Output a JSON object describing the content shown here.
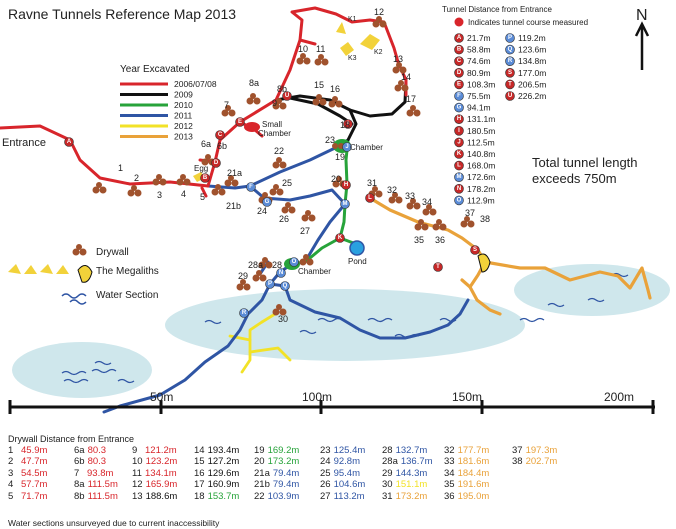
{
  "title": "Ravne Tunnels Reference Map 2013",
  "compass": "N",
  "total_length": {
    "line1": "Total tunnel length",
    "line2": "exceeds 750m"
  },
  "colors": {
    "2006_2008": "#d8252b",
    "2009": "#111111",
    "2010": "#27a33a",
    "2011": "#2f55a4",
    "2012": "#f2e227",
    "2013": "#e9a23a",
    "water": "#cfe7ec",
    "drywall": "#a0522d",
    "megalith": "#f2d23a"
  },
  "year_legend": {
    "title": "Year Excavated",
    "items": [
      {
        "label": "2006/07/08",
        "color": "#d8252b"
      },
      {
        "label": "2009",
        "color": "#111111"
      },
      {
        "label": "2010",
        "color": "#27a33a"
      },
      {
        "label": "2011",
        "color": "#2f55a4"
      },
      {
        "label": "2012",
        "color": "#f2e227"
      },
      {
        "label": "2013",
        "color": "#e9a23a"
      }
    ]
  },
  "symbol_legend": {
    "drywall": "Drywall",
    "megaliths": "The Megaliths",
    "water": "Water Section"
  },
  "place_labels": {
    "entrance": "Entrance",
    "egg": "Egg",
    "small_chamber_1": "Small",
    "small_chamber_2": "Chamber",
    "chamber_top": "Chamber",
    "chamber_bottom": "Chamber",
    "pond": "Pond",
    "k1": "K1",
    "k2": "K2",
    "k3": "K3"
  },
  "scale_bar": [
    "50m",
    "100m",
    "150m",
    "200m"
  ],
  "tunnel_distances": {
    "title": "Tunnel Distance from Entrance",
    "indicator": "Indicates tunnel course measured",
    "left": [
      {
        "mark": "A",
        "value": "21.7m"
      },
      {
        "mark": "B",
        "value": "58.8m"
      },
      {
        "mark": "C",
        "value": "74.6m"
      },
      {
        "mark": "D",
        "value": "80.9m"
      },
      {
        "mark": "E",
        "value": "108.3m"
      },
      {
        "mark": "F",
        "value": "75.5m"
      },
      {
        "mark": "G",
        "value": "94.1m"
      },
      {
        "mark": "H",
        "value": "131.1m"
      },
      {
        "mark": "I",
        "value": "180.5m"
      },
      {
        "mark": "J",
        "value": "112.5m"
      },
      {
        "mark": "K",
        "value": "140.8m"
      },
      {
        "mark": "L",
        "value": "168.0m"
      },
      {
        "mark": "M",
        "value": "172.6m"
      },
      {
        "mark": "N",
        "value": "178.2m"
      },
      {
        "mark": "O",
        "value": "112.9m"
      }
    ],
    "right": [
      {
        "mark": "P",
        "value": "119.2m"
      },
      {
        "mark": "Q",
        "value": "123.6m"
      },
      {
        "mark": "R",
        "value": "134.8m"
      },
      {
        "mark": "S",
        "value": "177.0m"
      },
      {
        "mark": "T",
        "value": "206.5m"
      },
      {
        "mark": "U",
        "value": "226.2m"
      }
    ]
  },
  "drywall_table": {
    "title": "Drywall Distance from Entrance",
    "columns": [
      [
        {
          "id": "1",
          "value": "45.9m",
          "color": "#d8252b"
        },
        {
          "id": "2",
          "value": "47.7m",
          "color": "#d8252b"
        },
        {
          "id": "3",
          "value": "54.5m",
          "color": "#d8252b"
        },
        {
          "id": "4",
          "value": "57.7m",
          "color": "#d8252b"
        },
        {
          "id": "5",
          "value": "71.7m",
          "color": "#d8252b"
        }
      ],
      [
        {
          "id": "6a",
          "value": "80.3",
          "color": "#d8252b"
        },
        {
          "id": "6b",
          "value": "80.3",
          "color": "#d8252b"
        },
        {
          "id": "7",
          "value": "93.8m",
          "color": "#d8252b"
        },
        {
          "id": "8a",
          "value": "111.5m",
          "color": "#d8252b"
        },
        {
          "id": "8b",
          "value": "111.5m",
          "color": "#d8252b"
        }
      ],
      [
        {
          "id": "9",
          "value": "121.2m",
          "color": "#d8252b"
        },
        {
          "id": "10",
          "value": "123.2m",
          "color": "#d8252b"
        },
        {
          "id": "11",
          "value": "134.1m",
          "color": "#d8252b"
        },
        {
          "id": "12",
          "value": "165.9m",
          "color": "#d8252b"
        },
        {
          "id": "13",
          "value": "188.6m",
          "color": "#111111"
        }
      ],
      [
        {
          "id": "14",
          "value": "193.4m",
          "color": "#111111"
        },
        {
          "id": "15",
          "value": "127.2m",
          "color": "#111111"
        },
        {
          "id": "16",
          "value": "129.6m",
          "color": "#111111"
        },
        {
          "id": "17",
          "value": "160.9m",
          "color": "#111111"
        },
        {
          "id": "18",
          "value": "153.7m",
          "color": "#27a33a"
        }
      ],
      [
        {
          "id": "19",
          "value": "169.2m",
          "color": "#27a33a"
        },
        {
          "id": "20",
          "value": "173.2m",
          "color": "#27a33a"
        },
        {
          "id": "21a",
          "value": "79.4m",
          "color": "#2f55a4"
        },
        {
          "id": "21b",
          "value": "79.4m",
          "color": "#2f55a4"
        },
        {
          "id": "22",
          "value": "103.9m",
          "color": "#2f55a4"
        }
      ],
      [
        {
          "id": "23",
          "value": "125.4m",
          "color": "#2f55a4"
        },
        {
          "id": "24",
          "value": "92.8m",
          "color": "#2f55a4"
        },
        {
          "id": "25",
          "value": "95.4m",
          "color": "#2f55a4"
        },
        {
          "id": "26",
          "value": "104.6m",
          "color": "#2f55a4"
        },
        {
          "id": "27",
          "value": "113.2m",
          "color": "#2f55a4"
        }
      ],
      [
        {
          "id": "28",
          "value": "132.7m",
          "color": "#2f55a4"
        },
        {
          "id": "28a",
          "value": "136.7m",
          "color": "#2f55a4"
        },
        {
          "id": "29",
          "value": "144.3m",
          "color": "#2f55a4"
        },
        {
          "id": "30",
          "value": "151.1m",
          "color": "#f2e227"
        },
        {
          "id": "31",
          "value": "173.2m",
          "color": "#e9a23a"
        }
      ],
      [
        {
          "id": "32",
          "value": "177.7m",
          "color": "#e9a23a"
        },
        {
          "id": "33",
          "value": "181.6m",
          "color": "#e9a23a"
        },
        {
          "id": "34",
          "value": "184.4m",
          "color": "#e9a23a"
        },
        {
          "id": "35",
          "value": "191.6m",
          "color": "#e9a23a"
        },
        {
          "id": "36",
          "value": "195.0m",
          "color": "#e9a23a"
        }
      ],
      [
        {
          "id": "37",
          "value": "197.3m",
          "color": "#e9a23a"
        },
        {
          "id": "38",
          "value": "202.7m",
          "color": "#e9a23a"
        }
      ]
    ]
  },
  "footnote": "Water sections unsurveyed due to current inaccessibility",
  "drywall_labels": [
    "1",
    "2",
    "3",
    "4",
    "5",
    "6a",
    "6b",
    "7",
    "8a",
    "8b",
    "9",
    "10",
    "11",
    "12",
    "13",
    "14",
    "15",
    "16",
    "17",
    "18",
    "19",
    "20",
    "21a",
    "21b",
    "22",
    "23",
    "24",
    "25",
    "26",
    "27",
    "28",
    "28a",
    "29",
    "30",
    "31",
    "32",
    "33",
    "34",
    "35",
    "36",
    "37",
    "38"
  ],
  "map_markers": [
    "A",
    "B",
    "C",
    "D",
    "E",
    "F",
    "G",
    "H",
    "I",
    "J",
    "K",
    "L",
    "M",
    "N",
    "O",
    "P",
    "Q",
    "R",
    "S",
    "T",
    "U"
  ]
}
